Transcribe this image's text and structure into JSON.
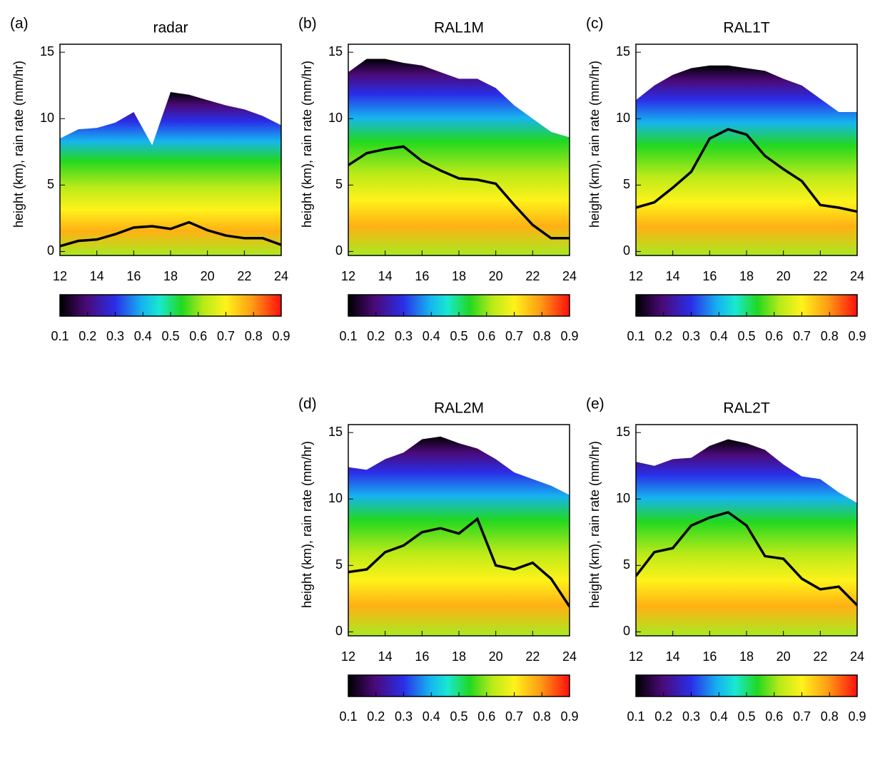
{
  "chart_data": [
    {
      "type": "contour",
      "panel_label": "(a)",
      "title": "radar",
      "y_label": "height (km), rain rate (mm/hr)",
      "x": [
        12,
        13,
        14,
        15,
        16,
        17,
        18,
        19,
        20,
        21,
        22,
        23,
        24
      ],
      "series": [
        {
          "color": "#000000",
          "values": [
            8.5,
            9.2,
            9.3,
            9.7,
            10.5,
            8.0,
            12.0,
            11.8,
            11.4,
            11.0,
            10.7,
            10.2,
            9.5
          ]
        },
        {
          "color": "#000000",
          "values": [
            0.4,
            0.8,
            0.9,
            1.3,
            1.8,
            1.9,
            1.7,
            2.2,
            1.6,
            1.2,
            1.0,
            1.0,
            0.5
          ]
        }
      ],
      "xlim": [
        12,
        24
      ],
      "xticks": [
        12,
        14,
        16,
        18,
        20,
        22,
        24
      ],
      "ylim": [
        -0.3,
        15.6
      ],
      "yticks": [
        0,
        5,
        10,
        15
      ],
      "colorbar_lim": [
        0.1,
        0.9
      ],
      "colorbar_ticks": [
        0.1,
        0.2,
        0.3,
        0.4,
        0.5,
        0.6,
        0.7,
        0.8,
        0.9
      ]
    },
    {
      "type": "contour",
      "panel_label": "(b)",
      "title": "RAL1M",
      "y_label": "height (km), rain rate (mm/hr)",
      "x": [
        12,
        13,
        14,
        15,
        16,
        17,
        18,
        19,
        20,
        21,
        22,
        23,
        24
      ],
      "series": [
        {
          "color": "#000000",
          "values": [
            13.5,
            14.5,
            14.5,
            14.2,
            14.0,
            13.5,
            13.0,
            13.0,
            12.3,
            11.0,
            10.0,
            9.0,
            8.6
          ]
        },
        {
          "color": "#000000",
          "values": [
            6.5,
            7.4,
            7.7,
            7.9,
            6.8,
            6.1,
            5.5,
            5.4,
            5.1,
            3.5,
            2.0,
            1.0,
            1.0
          ]
        }
      ],
      "xlim": [
        12,
        24
      ],
      "xticks": [
        12,
        14,
        16,
        18,
        20,
        22,
        24
      ],
      "ylim": [
        -0.3,
        15.6
      ],
      "yticks": [
        0,
        5,
        10,
        15
      ],
      "colorbar_lim": [
        0.1,
        0.9
      ],
      "colorbar_ticks": [
        0.1,
        0.2,
        0.3,
        0.4,
        0.5,
        0.6,
        0.7,
        0.8,
        0.9
      ]
    },
    {
      "type": "contour",
      "panel_label": "(c)",
      "title": "RAL1T",
      "y_label": "height (km), rain rate (mm/hr)",
      "x": [
        12,
        13,
        14,
        15,
        16,
        17,
        18,
        19,
        20,
        21,
        22,
        23,
        24
      ],
      "series": [
        {
          "color": "#000000",
          "values": [
            11.4,
            12.5,
            13.3,
            13.8,
            14.0,
            14.0,
            13.8,
            13.6,
            13.0,
            12.5,
            11.5,
            10.5,
            10.5
          ]
        },
        {
          "color": "#000000",
          "values": [
            3.3,
            3.7,
            4.8,
            6.0,
            8.5,
            9.2,
            8.8,
            7.2,
            6.2,
            5.3,
            3.5,
            3.3,
            3.0
          ]
        }
      ],
      "xlim": [
        12,
        24
      ],
      "xticks": [
        12,
        14,
        16,
        18,
        20,
        22,
        24
      ],
      "ylim": [
        -0.3,
        15.6
      ],
      "yticks": [
        0,
        5,
        10,
        15
      ],
      "colorbar_lim": [
        0.1,
        0.9
      ],
      "colorbar_ticks": [
        0.1,
        0.2,
        0.3,
        0.4,
        0.5,
        0.6,
        0.7,
        0.8,
        0.9
      ]
    },
    {
      "type": "contour",
      "panel_label": "(d)",
      "title": "RAL2M",
      "y_label": "height (km), rain rate (mm/hr)",
      "x": [
        12,
        13,
        14,
        15,
        16,
        17,
        18,
        19,
        20,
        21,
        22,
        23,
        24
      ],
      "series": [
        {
          "color": "#000000",
          "values": [
            12.4,
            12.2,
            13.0,
            13.5,
            14.5,
            14.7,
            14.2,
            13.8,
            13.0,
            12.0,
            11.5,
            11.0,
            10.3
          ]
        },
        {
          "color": "#000000",
          "values": [
            4.5,
            4.7,
            6.0,
            6.5,
            7.5,
            7.8,
            7.4,
            8.5,
            5.0,
            4.7,
            5.2,
            4.0,
            1.9
          ]
        }
      ],
      "xlim": [
        12,
        24
      ],
      "xticks": [
        12,
        14,
        16,
        18,
        20,
        22,
        24
      ],
      "ylim": [
        -0.3,
        15.6
      ],
      "yticks": [
        0,
        5,
        10,
        15
      ],
      "colorbar_lim": [
        0.1,
        0.9
      ],
      "colorbar_ticks": [
        0.1,
        0.2,
        0.3,
        0.4,
        0.5,
        0.6,
        0.7,
        0.8,
        0.9
      ]
    },
    {
      "type": "contour",
      "panel_label": "(e)",
      "title": "RAL2T",
      "y_label": "height (km), rain rate (mm/hr)",
      "x": [
        12,
        13,
        14,
        15,
        16,
        17,
        18,
        19,
        20,
        21,
        22,
        23,
        24
      ],
      "series": [
        {
          "color": "#000000",
          "values": [
            12.8,
            12.5,
            13.0,
            13.1,
            14.0,
            14.5,
            14.2,
            13.7,
            12.6,
            11.7,
            11.5,
            10.5,
            9.7
          ]
        },
        {
          "color": "#000000",
          "values": [
            4.2,
            6.0,
            6.3,
            8.0,
            8.6,
            9.0,
            8.0,
            5.7,
            5.5,
            4.0,
            3.2,
            3.4,
            2.0
          ]
        }
      ],
      "xlim": [
        12,
        24
      ],
      "xticks": [
        12,
        14,
        16,
        18,
        20,
        22,
        24
      ],
      "ylim": [
        -0.3,
        15.6
      ],
      "yticks": [
        0,
        5,
        10,
        15
      ],
      "colorbar_lim": [
        0.1,
        0.9
      ],
      "colorbar_ticks": [
        0.1,
        0.2,
        0.3,
        0.4,
        0.5,
        0.6,
        0.7,
        0.8,
        0.9
      ]
    }
  ]
}
